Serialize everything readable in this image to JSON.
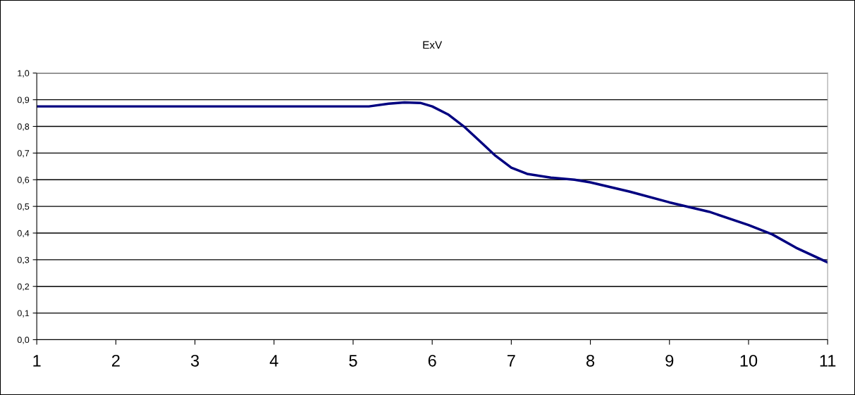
{
  "chart_data": {
    "type": "line",
    "title": "ExV",
    "x": [
      1,
      2,
      3,
      4,
      5,
      5.2,
      5.45,
      5.65,
      5.85,
      6,
      6.2,
      6.4,
      6.6,
      6.8,
      7,
      7.2,
      7.5,
      7.8,
      8,
      8.5,
      9,
      9.5,
      10,
      10.3,
      10.6,
      11
    ],
    "series": [
      {
        "color": "#000080",
        "values": [
          0.875,
          0.875,
          0.875,
          0.875,
          0.875,
          0.875,
          0.885,
          0.89,
          0.888,
          0.875,
          0.845,
          0.8,
          0.745,
          0.69,
          0.645,
          0.622,
          0.608,
          0.6,
          0.59,
          0.555,
          0.515,
          0.48,
          0.43,
          0.395,
          0.345,
          0.29
        ]
      }
    ],
    "xlim": [
      1,
      11
    ],
    "xticks": [
      1,
      2,
      3,
      4,
      5,
      6,
      7,
      8,
      9,
      10,
      11
    ],
    "ylim": [
      0,
      1
    ],
    "yticks": [
      {
        "value": 0,
        "label": "0,0"
      },
      {
        "value": 0.1,
        "label": "0,1"
      },
      {
        "value": 0.2,
        "label": "0,2"
      },
      {
        "value": 0.3,
        "label": "0,3"
      },
      {
        "value": 0.4,
        "label": "0,4"
      },
      {
        "value": 0.5,
        "label": "0,5"
      },
      {
        "value": 0.6,
        "label": "0,6"
      },
      {
        "value": 0.7,
        "label": "0,7"
      },
      {
        "value": 0.8,
        "label": "0,8"
      },
      {
        "value": 0.9,
        "label": "0,9"
      },
      {
        "value": 1,
        "label": "1,0"
      }
    ],
    "grid": "y",
    "marker": "none",
    "line_style": "solid"
  }
}
